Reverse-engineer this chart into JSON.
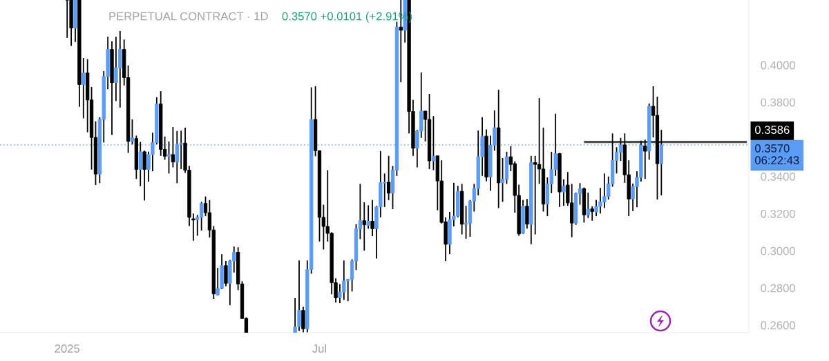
{
  "chart_data": {
    "type": "candlestick",
    "title": "PERPETUAL CONTRACT · 1D",
    "subtitle": "0.3570 +0.0101 (+2.91%)",
    "categories": [
      null,
      null,
      null,
      null,
      null,
      null,
      null,
      null,
      null,
      null,
      null,
      null,
      null,
      null,
      null,
      null,
      "2025",
      null,
      null,
      null,
      null,
      null,
      null,
      null,
      null,
      null,
      null,
      null,
      null,
      null,
      null,
      null,
      null,
      null,
      null,
      null,
      null,
      null,
      null,
      null,
      null,
      null,
      null,
      null,
      null,
      null,
      null,
      null,
      null,
      null,
      null,
      null,
      null,
      null,
      null,
      null,
      null,
      null,
      null,
      null,
      null,
      null,
      null,
      null,
      null,
      null,
      null,
      null,
      null,
      null,
      null,
      null,
      null,
      null,
      null,
      null,
      null,
      null,
      "Jul",
      null,
      null,
      null,
      null,
      null,
      null,
      null,
      null,
      null,
      null,
      null,
      null,
      null,
      null,
      null,
      null,
      null,
      null,
      null,
      null,
      null,
      null,
      null,
      null,
      null,
      null,
      null,
      null,
      null,
      null,
      null,
      null,
      null,
      null,
      null,
      null,
      null,
      null,
      null,
      null,
      null,
      null,
      null,
      null,
      null,
      null,
      null,
      null,
      null,
      null,
      null,
      null,
      null,
      null,
      null,
      null,
      null,
      null,
      null,
      null,
      null,
      null,
      null,
      null,
      null,
      null,
      null,
      null,
      null,
      null,
      null,
      null,
      null,
      null,
      null,
      null,
      null,
      null,
      null,
      null,
      null,
      null,
      null,
      null,
      null,
      null,
      null,
      null,
      null,
      null,
      null,
      null,
      null,
      null,
      null,
      null,
      null,
      null,
      null,
      null,
      null,
      null,
      null,
      null,
      null
    ],
    "ylim": [
      0.2559,
      0.435
    ],
    "yticks": [
      {
        "value": 0.26,
        "label": "0.2600"
      },
      {
        "value": 0.28,
        "label": "0.2800"
      },
      {
        "value": 0.3,
        "label": "0.3000"
      },
      {
        "value": 0.32,
        "label": "0.3200"
      },
      {
        "value": 0.34,
        "label": "0.3400"
      },
      {
        "value": 0.38,
        "label": "0.3800"
      },
      {
        "value": 0.4,
        "label": "0.4000"
      }
    ],
    "ref_lines": [
      {
        "axis": "y",
        "value": 0.357,
        "label": "0.3570\n06:22:43",
        "color": "#5b9cf6",
        "line_style": "dotted"
      }
    ],
    "series": [
      {
        "type": "candlestick",
        "color": "#000000",
        "colors": [
          null,
          null,
          null,
          null,
          null,
          null,
          null,
          null,
          null,
          null,
          null,
          null,
          null,
          null,
          null,
          null,
          "#000000",
          "#000000",
          "#5b9cf6",
          "#000000",
          "#5b9cf6",
          "#000000",
          "#000000",
          "#000000",
          "#5b9cf6",
          "#5b9cf6",
          "#5b9cf6",
          "#000000",
          "#5b9cf6",
          "#5b9cf6",
          "#000000",
          "#000000",
          "#5b9cf6",
          "#000000",
          "#5b9cf6",
          "#000000",
          "#5b9cf6",
          "#5b9cf6",
          "#5b9cf6",
          "#000000",
          "#000000",
          "#5b9cf6",
          "#000000",
          "#5b9cf6",
          "#5b9cf6",
          "#000000",
          "#000000",
          "#000000",
          "#5b9cf6",
          "#5b9cf6",
          "#000000",
          "#000000",
          "#000000",
          "#5b9cf6",
          "#5b9cf6",
          "#000000",
          "#5b9cf6",
          "#5b9cf6",
          "#000000",
          "#000000",
          "#000000",
          null,
          null,
          null,
          null,
          null,
          null,
          null,
          null,
          null,
          null,
          null,
          "#5b9cf6",
          "#5b9cf6",
          "#000000",
          "#5b9cf6",
          "#5b9cf6",
          "#000000",
          "#000000",
          "#000000",
          "#000000",
          "#000000",
          "#000000",
          "#5b9cf6",
          "#5b9cf6",
          "#5b9cf6",
          "#5b9cf6",
          "#5b9cf6",
          "#5b9cf6",
          "#000000",
          "#5b9cf6",
          "#000000",
          "#5b9cf6",
          "#5b9cf6",
          "#5b9cf6",
          "#000000",
          "#5b9cf6",
          "#5b9cf6",
          "#000000",
          "#5b9cf6",
          "#000000",
          "#000000",
          "#5b9cf6",
          "#5b9cf6",
          "#000000",
          "#000000",
          "#5b9cf6",
          "#000000",
          "#000000",
          "#000000",
          "#5b9cf6",
          "#5b9cf6",
          "#5b9cf6",
          "#000000",
          "#5b9cf6",
          "#5b9cf6",
          "#5b9cf6",
          "#5b9cf6",
          "#5b9cf6",
          "#000000",
          "#5b9cf6",
          "#5b9cf6",
          "#000000",
          "#5b9cf6",
          "#5b9cf6",
          "#000000",
          "#000000",
          "#000000",
          "#5b9cf6",
          "#000000",
          "#5b9cf6",
          "#000000",
          "#000000",
          "#000000",
          "#5b9cf6",
          "#5b9cf6",
          "#5b9cf6",
          "#000000",
          "#5b9cf6",
          "#000000",
          "#000000",
          "#5b9cf6",
          "#5b9cf6",
          "#000000",
          "#5b9cf6",
          "#000000",
          "#5b9cf6",
          "#5b9cf6",
          "#5b9cf6",
          "#5b9cf6",
          "#5b9cf6",
          "#5b9cf6",
          "#5b9cf6",
          "#000000",
          "#000000",
          "#5b9cf6",
          "#5b9cf6",
          "#5b9cf6",
          "#000000",
          "#5b9cf6",
          "#000000",
          "#000000",
          "#5b9cf6",
          null,
          null,
          null,
          null,
          null,
          null,
          null,
          null,
          null,
          null,
          null,
          null,
          null,
          null,
          null,
          null,
          null,
          null,
          null,
          null,
          null
        ],
        "ohlc": [
          null,
          null,
          null,
          null,
          null,
          null,
          null,
          null,
          null,
          null,
          null,
          null,
          null,
          null,
          null,
          null,
          [
            0.435,
            0.435,
            0.4146,
            0.435
          ],
          [
            0.435,
            0.435,
            0.4103,
            0.4199
          ],
          [
            0.4199,
            0.435,
            0.4124,
            0.435
          ],
          [
            0.435,
            0.435,
            0.3775,
            0.3895
          ],
          [
            0.3895,
            0.4038,
            0.3713,
            0.3957
          ],
          [
            0.3957,
            0.4031,
            0.3638,
            0.3812
          ],
          [
            0.3812,
            0.3882,
            0.3437,
            0.361
          ],
          [
            0.361,
            0.3697,
            0.3354,
            0.3413
          ],
          [
            0.3413,
            0.3719,
            0.3364,
            0.3707
          ],
          [
            0.3707,
            0.3967,
            0.3583,
            0.3938
          ],
          [
            0.3938,
            0.4152,
            0.387,
            0.4084
          ],
          [
            0.4084,
            0.4128,
            0.3624,
            0.3905
          ],
          [
            0.3905,
            0.4152,
            0.3806,
            0.3985
          ],
          [
            0.3985,
            0.4183,
            0.3771,
            0.4084
          ],
          [
            0.4084,
            0.4137,
            0.389,
            0.3932
          ],
          [
            0.3932,
            0.3998,
            0.3527,
            0.3589
          ],
          [
            0.3589,
            0.3707,
            0.3573,
            0.3608
          ],
          [
            0.3604,
            0.362,
            0.3387,
            0.3438
          ],
          [
            0.3438,
            0.3586,
            0.3348,
            0.3533
          ],
          [
            0.3533,
            0.3539,
            0.3271,
            0.3438
          ],
          [
            0.3438,
            0.3533,
            0.3372,
            0.3518
          ],
          [
            0.3518,
            0.3636,
            0.3428,
            0.3583
          ],
          [
            0.3583,
            0.3827,
            0.3573,
            0.379
          ],
          [
            0.379,
            0.3859,
            0.3511,
            0.3546
          ],
          [
            0.3546,
            0.3615,
            0.349,
            0.3509
          ],
          [
            0.3509,
            0.3588,
            0.3416,
            0.3518
          ],
          [
            0.3518,
            0.3666,
            0.3449,
            0.3478
          ],
          [
            0.3478,
            0.3645,
            0.3364,
            0.3573
          ],
          [
            0.3573,
            0.3647,
            0.344,
            0.3578
          ],
          [
            0.358,
            0.3663,
            0.3419,
            0.3434
          ],
          [
            0.3434,
            0.3457,
            0.3133,
            0.318
          ],
          [
            0.3172,
            0.3201,
            0.3054,
            0.3166
          ],
          [
            0.3168,
            0.3193,
            0.3081,
            0.318
          ],
          [
            0.318,
            0.3263,
            0.3109,
            0.3255
          ],
          [
            0.3255,
            0.3292,
            0.3187,
            0.3205
          ],
          [
            0.3205,
            0.3273,
            0.3071,
            0.3112
          ],
          [
            0.3112,
            0.3133,
            0.2741,
            0.2768
          ],
          [
            0.2762,
            0.2908,
            0.2759,
            0.2797
          ],
          [
            0.2797,
            0.2982,
            0.2793,
            0.292
          ],
          [
            0.292,
            0.2945,
            0.2809,
            0.2825
          ],
          [
            0.2825,
            0.2951,
            0.2707,
            0.2945
          ],
          [
            0.2945,
            0.3023,
            0.2883,
            0.2992
          ],
          [
            0.2992,
            0.3019,
            0.2788,
            0.2821
          ],
          [
            0.2821,
            0.2836,
            0.2636,
            0.2636
          ],
          [
            0.2636,
            0.2642,
            0.2559,
            0.2559
          ],
          null,
          null,
          null,
          null,
          null,
          null,
          null,
          null,
          null,
          null,
          null,
          [
            0.2559,
            0.2745,
            0.2559,
            0.259
          ],
          [
            0.2592,
            0.2948,
            0.2568,
            0.2679
          ],
          [
            0.2679,
            0.2698,
            0.2561,
            0.258
          ],
          [
            0.258,
            0.2948,
            0.2561,
            0.2899
          ],
          [
            0.2899,
            0.388,
            0.2877,
            0.3707
          ],
          [
            0.3707,
            0.3886,
            0.3509,
            0.3539
          ],
          [
            0.3539,
            0.3539,
            0.305,
            0.318
          ],
          [
            0.318,
            0.3248,
            0.3007,
            0.3131
          ],
          [
            0.3131,
            0.3434,
            0.305,
            0.3094
          ],
          [
            0.3094,
            0.31,
            0.2766,
            0.2828
          ],
          [
            0.2828,
            0.2852,
            0.2722,
            0.2747
          ],
          [
            0.2747,
            0.2821,
            0.2719,
            0.2778
          ],
          [
            0.2778,
            0.2948,
            0.2735,
            0.2838
          ],
          [
            0.2838,
            0.2849,
            0.2729,
            0.2846
          ],
          [
            0.2846,
            0.2954,
            0.2781,
            0.2945
          ],
          [
            0.2945,
            0.3143,
            0.2896,
            0.3119
          ],
          [
            0.3119,
            0.336,
            0.3063,
            0.3162
          ],
          [
            0.3162,
            0.3261,
            0.3001,
            0.314
          ],
          [
            0.3137,
            0.3245,
            0.3119,
            0.3159
          ],
          [
            0.3159,
            0.3273,
            0.3079,
            0.3119
          ],
          [
            0.3119,
            0.3242,
            0.2958,
            0.3236
          ],
          [
            0.3236,
            0.3537,
            0.318,
            0.3366
          ],
          [
            0.3364,
            0.3416,
            0.3236,
            0.3369
          ],
          [
            0.3369,
            0.3511,
            0.3273,
            0.331
          ],
          [
            0.331,
            0.3457,
            0.3224,
            0.3434
          ],
          [
            0.3434,
            0.4233,
            0.3403,
            0.4204
          ],
          [
            0.4204,
            0.435,
            0.3907,
            0.4187
          ],
          [
            0.4187,
            0.435,
            0.4121,
            0.435
          ],
          [
            0.435,
            0.435,
            0.3632,
            0.375
          ],
          [
            0.375,
            0.3812,
            0.3511,
            0.3552
          ],
          [
            0.3552,
            0.3651,
            0.3449,
            0.3645
          ],
          [
            0.3645,
            0.396,
            0.3608,
            0.3752
          ],
          [
            0.3752,
            0.3752,
            0.3589,
            0.3707
          ],
          [
            0.3707,
            0.3845,
            0.344,
            0.3484
          ],
          [
            0.3484,
            0.3725,
            0.3434,
            0.3509
          ],
          [
            0.3511,
            0.3511,
            0.3218,
            0.3376
          ],
          [
            0.3376,
            0.3487,
            0.3147,
            0.3153
          ],
          [
            0.3156,
            0.318,
            0.2945,
            0.3035
          ],
          [
            0.3035,
            0.3209,
            0.2982,
            0.3168
          ],
          [
            0.3168,
            0.3366,
            0.3131,
            0.3187
          ],
          [
            0.3187,
            0.335,
            0.318,
            0.332
          ],
          [
            0.332,
            0.336,
            0.3088,
            0.3143
          ],
          [
            0.3143,
            0.3242,
            0.3065,
            0.3149
          ],
          [
            0.3149,
            0.3273,
            0.3075,
            0.3267
          ],
          [
            0.3267,
            0.336,
            0.3211,
            0.3335
          ],
          [
            0.3335,
            0.3647,
            0.3298,
            0.3506
          ],
          [
            0.3506,
            0.3719,
            0.3403,
            0.3617
          ],
          [
            0.3617,
            0.3653,
            0.3375,
            0.3397
          ],
          [
            0.3397,
            0.362,
            0.3323,
            0.3568
          ],
          [
            0.3568,
            0.3756,
            0.3539,
            0.3662
          ],
          [
            0.3662,
            0.3867,
            0.323,
            0.3366
          ],
          [
            0.3366,
            0.3499,
            0.3263,
            0.3385
          ],
          [
            0.3385,
            0.3533,
            0.336,
            0.3506
          ],
          [
            0.3506,
            0.3564,
            0.3428,
            0.3465
          ],
          [
            0.3469,
            0.3481,
            0.3205,
            0.3298
          ],
          [
            0.3298,
            0.3356,
            0.3081,
            0.3091
          ],
          [
            0.3094,
            0.3273,
            0.3091,
            0.324
          ],
          [
            0.324,
            0.3279,
            0.3119,
            0.3143
          ],
          [
            0.3143,
            0.3511,
            0.3035,
            0.3475
          ],
          [
            0.3475,
            0.3511,
            0.3088,
            0.3465
          ],
          [
            0.3465,
            0.3822,
            0.336,
            0.344
          ],
          [
            0.344,
            0.3663,
            0.3211,
            0.3251
          ],
          [
            0.3251,
            0.3395,
            0.3187,
            0.336
          ],
          [
            0.336,
            0.3533,
            0.331,
            0.3437
          ],
          [
            0.3437,
            0.3738,
            0.3403,
            0.3523
          ],
          [
            0.3523,
            0.3527,
            0.3236,
            0.3317
          ],
          [
            0.3317,
            0.3385,
            0.3242,
            0.3348
          ],
          [
            0.3354,
            0.3424,
            0.3242,
            0.3258
          ],
          [
            0.3258,
            0.336,
            0.3073,
            0.3149
          ],
          [
            0.3149,
            0.3313,
            0.314,
            0.3308
          ],
          [
            0.3308,
            0.3364,
            0.3248,
            0.3333
          ],
          [
            0.3335,
            0.3341,
            0.3152,
            0.3193
          ],
          [
            0.3193,
            0.3313,
            0.3177,
            0.3224
          ],
          [
            0.3226,
            0.3239,
            0.3162,
            0.3211
          ],
          [
            0.3209,
            0.3273,
            0.3187,
            0.3239
          ],
          [
            0.3239,
            0.3338,
            0.3201,
            0.3263
          ],
          [
            0.3263,
            0.3416,
            0.323,
            0.3292
          ],
          [
            0.3292,
            0.34,
            0.3276,
            0.336
          ],
          [
            0.336,
            0.3632,
            0.3345,
            0.3486
          ],
          [
            0.3486,
            0.3558,
            0.3416,
            0.3531
          ],
          [
            0.3531,
            0.3608,
            0.3484,
            0.357
          ],
          [
            0.357,
            0.3632,
            0.3366,
            0.3409
          ],
          [
            0.3409,
            0.3487,
            0.3187,
            0.3279
          ],
          [
            0.3279,
            0.3362,
            0.3214,
            0.3345
          ],
          [
            0.3345,
            0.3428,
            0.3234,
            0.3395
          ],
          [
            0.3395,
            0.3593,
            0.3372,
            0.3568
          ],
          [
            0.3564,
            0.3598,
            0.3387,
            0.3536
          ],
          [
            0.3536,
            0.3793,
            0.349,
            0.3778
          ],
          [
            0.3778,
            0.3886,
            0.361,
            0.3729
          ],
          [
            0.3729,
            0.383,
            0.3276,
            0.3469
          ],
          [
            0.3469,
            0.3651,
            0.3298,
            0.357
          ],
          null,
          null,
          null,
          null,
          null,
          null,
          null,
          null,
          null,
          null,
          null,
          null,
          null,
          null,
          null,
          null,
          null,
          null,
          null,
          null,
          null
        ]
      },
      {
        "type": "line",
        "color": "#4d4d4d",
        "values": [
          null,
          null,
          null,
          null,
          null,
          null,
          null,
          null,
          null,
          null,
          null,
          null,
          null,
          null,
          null,
          null,
          null,
          null,
          null,
          null,
          null,
          null,
          null,
          null,
          null,
          null,
          null,
          null,
          null,
          null,
          null,
          null,
          null,
          null,
          null,
          null,
          null,
          null,
          null,
          null,
          null,
          null,
          null,
          null,
          null,
          null,
          null,
          null,
          null,
          null,
          null,
          null,
          null,
          null,
          null,
          null,
          null,
          null,
          null,
          null,
          null,
          null,
          null,
          null,
          null,
          null,
          null,
          null,
          null,
          null,
          null,
          null,
          null,
          null,
          null,
          null,
          null,
          null,
          null,
          null,
          null,
          null,
          null,
          null,
          null,
          null,
          null,
          null,
          null,
          null,
          null,
          null,
          null,
          null,
          null,
          null,
          null,
          null,
          null,
          null,
          null,
          null,
          null,
          null,
          null,
          null,
          null,
          null,
          null,
          null,
          null,
          null,
          null,
          null,
          null,
          null,
          null,
          null,
          null,
          null,
          null,
          null,
          null,
          null,
          null,
          null,
          null,
          null,
          null,
          null,
          null,
          null,
          null,
          null,
          null,
          null,
          null,
          null,
          null,
          null,
          null,
          null,
          null,
          0.3586,
          0.3586,
          0.3586,
          0.3586,
          0.3586,
          0.3586,
          0.3586,
          0.3586,
          0.3586,
          0.3586,
          0.3586,
          0.3586,
          0.3586,
          0.3586,
          0.3586,
          0.3586,
          0.3586,
          0.3586,
          0.3586,
          0.3586,
          0.3586,
          0.3586,
          0.3586,
          0.3586,
          0.3586,
          0.3586,
          0.3586,
          0.3586,
          0.3586,
          0.3586,
          0.3586,
          0.3586,
          0.3586,
          0.3586,
          0.3586,
          0.3586,
          0.3586,
          0.3586,
          0.3586,
          0.3586,
          0.3586
        ],
        "value_labels": [
          null,
          null,
          null,
          null,
          null,
          null,
          null,
          null,
          null,
          null,
          null,
          null,
          null,
          null,
          null,
          null,
          null,
          null,
          null,
          null,
          null,
          null,
          null,
          null,
          null,
          null,
          null,
          null,
          null,
          null,
          null,
          null,
          null,
          null,
          null,
          null,
          null,
          null,
          null,
          null,
          null,
          null,
          null,
          null,
          null,
          null,
          null,
          null,
          null,
          null,
          null,
          null,
          null,
          null,
          null,
          null,
          null,
          null,
          null,
          null,
          null,
          null,
          null,
          null,
          null,
          null,
          null,
          null,
          null,
          null,
          null,
          null,
          null,
          null,
          null,
          null,
          null,
          null,
          null,
          null,
          null,
          null,
          null,
          null,
          null,
          null,
          null,
          null,
          null,
          null,
          null,
          null,
          null,
          null,
          null,
          null,
          null,
          null,
          null,
          null,
          null,
          null,
          null,
          null,
          null,
          null,
          null,
          null,
          null,
          null,
          null,
          null,
          null,
          null,
          null,
          null,
          null,
          null,
          null,
          null,
          null,
          null,
          null,
          null,
          null,
          null,
          null,
          null,
          null,
          null,
          null,
          null,
          null,
          null,
          null,
          null,
          null,
          null,
          null,
          null,
          null,
          null,
          null,
          null,
          null,
          null,
          null,
          null,
          null,
          null,
          null,
          null,
          null,
          null,
          null,
          null,
          null,
          null,
          null,
          null,
          null,
          null,
          null,
          null,
          null,
          null,
          null,
          null,
          null,
          null,
          null,
          null,
          null,
          null,
          null,
          null,
          null,
          null,
          null,
          null,
          null,
          null,
          null,
          "0.3586"
        ]
      }
    ]
  }
}
